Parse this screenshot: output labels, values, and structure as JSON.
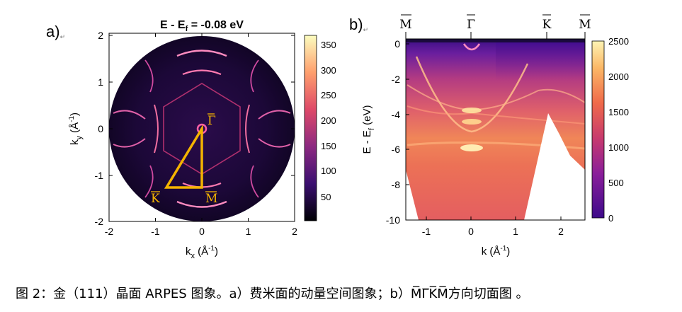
{
  "panel_a": {
    "label": "a)",
    "title_prefix": "E - E",
    "title_sub": "f",
    "title_suffix": " = -0.08 eV",
    "xlabel_main": "k",
    "xlabel_sub": "x",
    "xlabel_unit": " (Å",
    "xlabel_sup": "-1",
    "xlabel_close": ")",
    "ylabel_main": "k",
    "ylabel_sub": "y",
    "ylabel_unit": " (Å",
    "ylabel_sup": "-1",
    "ylabel_close": ")",
    "x_ticks": [
      "-2",
      "-1",
      "0",
      "1",
      "2"
    ],
    "y_ticks": [
      "2",
      "1",
      "0",
      "-1",
      "-2"
    ],
    "colorbar_ticks": [
      "350",
      "300",
      "250",
      "200",
      "150",
      "100",
      "50"
    ],
    "points": {
      "gamma": "Γ",
      "K": "K",
      "M": "M"
    },
    "highlight_color": "#f4b400"
  },
  "panel_b": {
    "label": "b)",
    "ylabel": "E - E",
    "ylabel_sub": "f",
    "ylabel_unit": " (eV)",
    "xlabel": "k (Å",
    "xlabel_sup": "-1",
    "xlabel_close": ")",
    "x_ticks": [
      "-1",
      "0",
      "1",
      "2"
    ],
    "y_ticks": [
      "0",
      "-2",
      "-4",
      "-6",
      "-8",
      "-10"
    ],
    "top_labels": [
      "M",
      "Γ",
      "K",
      "M"
    ],
    "colorbar_ticks": [
      "2500",
      "2000",
      "1500",
      "1000",
      "500",
      "0"
    ]
  },
  "caption": "图 2：金（111）晶面 ARPES 图象。a）费米面的动量空间图象；b）M̅Γ̅K̅M̅方向切面图 。",
  "chart_data": [
    {
      "type": "heatmap",
      "title": "E - Ef = -0.08 eV",
      "xlabel": "kx (Å-1)",
      "ylabel": "ky (Å-1)",
      "xlim": [
        -2,
        2
      ],
      "ylim": [
        -2,
        2
      ],
      "colorbar_range": [
        0,
        370
      ],
      "annotations": [
        "Γ",
        "K",
        "M"
      ]
    },
    {
      "type": "heatmap",
      "xlabel": "k (Å-1)",
      "ylabel": "E - Ef (eV)",
      "xlim": [
        -1.5,
        2.5
      ],
      "ylim": [
        -10,
        0.3
      ],
      "colorbar_range": [
        0,
        2500
      ],
      "high_symmetry_points": [
        "M",
        "Γ",
        "K",
        "M"
      ]
    }
  ]
}
